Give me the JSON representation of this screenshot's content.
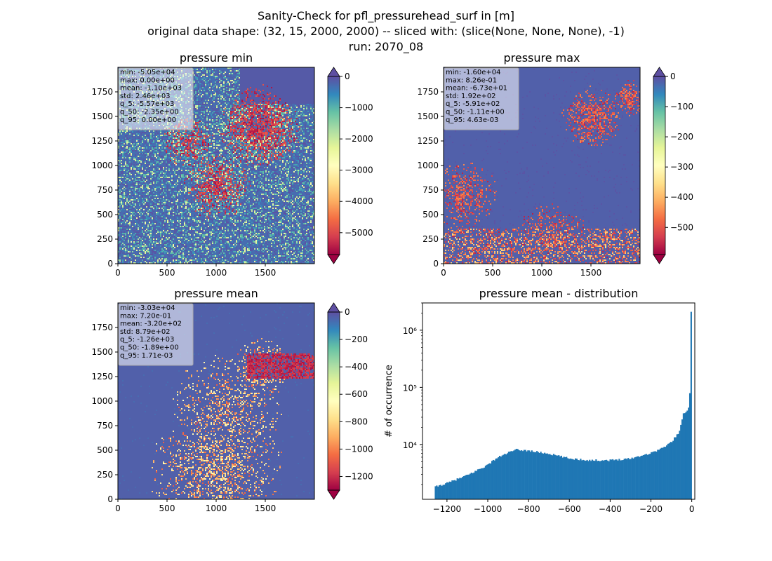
{
  "figure": {
    "title_lines": [
      "Sanity-Check for pfl_pressurehead_surf in [m]",
      "original data shape: (32, 15, 2000, 2000) -- sliced with: (slice(None, None, None), -1)",
      "run: 2070_08"
    ]
  },
  "chart_data": [
    {
      "type": "heatmap",
      "title": "pressure min",
      "xlim": [
        0,
        2000
      ],
      "ylim": [
        0,
        2000
      ],
      "xticks": [
        0,
        500,
        1000,
        1500
      ],
      "yticks": [
        0,
        250,
        500,
        750,
        1000,
        1250,
        1500,
        1750
      ],
      "colormap": "Spectral",
      "colorbar": {
        "range": [
          -5700,
          0
        ],
        "ticks": [
          0,
          -1000,
          -2000,
          -3000,
          -4000,
          -5000
        ],
        "extend": "both"
      },
      "stats_box": [
        "min: -5.05e+04",
        "max: 0.00e+00",
        "mean: -1.10e+03",
        "std: 2.46e+03",
        "q_5: -5.57e+03",
        "q_50: -2.35e+00",
        "q_95: 0.00e+00"
      ]
    },
    {
      "type": "heatmap",
      "title": "pressure max",
      "xlim": [
        0,
        2000
      ],
      "ylim": [
        0,
        2000
      ],
      "xticks": [
        0,
        500,
        1000,
        1500
      ],
      "yticks": [
        0,
        250,
        500,
        750,
        1000,
        1250,
        1500,
        1750
      ],
      "colormap": "Spectral",
      "colorbar": {
        "range": [
          -590,
          0
        ],
        "ticks": [
          0,
          -100,
          -200,
          -300,
          -400,
          -500
        ],
        "extend": "both"
      },
      "stats_box": [
        "min: -1.60e+04",
        "max: 8.26e-01",
        "mean: -6.73e+01",
        "std: 1.92e+02",
        "q_5: -5.91e+02",
        "q_50: -1.11e+00",
        "q_95: 4.63e-03"
      ]
    },
    {
      "type": "heatmap",
      "title": "pressure mean",
      "xlim": [
        0,
        2000
      ],
      "ylim": [
        0,
        2000
      ],
      "xticks": [
        0,
        500,
        1000,
        1500
      ],
      "yticks": [
        0,
        250,
        500,
        750,
        1000,
        1250,
        1500,
        1750
      ],
      "colormap": "Spectral",
      "colorbar": {
        "range": [
          -1300,
          0
        ],
        "ticks": [
          0,
          -200,
          -400,
          -600,
          -800,
          -1000,
          -1200
        ],
        "extend": "both"
      },
      "stats_box": [
        "min: -3.03e+04",
        "max: 7.20e-01",
        "mean: -3.20e+02",
        "std: 8.79e+02",
        "q_5: -1.26e+03",
        "q_50: -1.89e+00",
        "q_95: 1.71e-03"
      ]
    },
    {
      "type": "bar",
      "title": "pressure mean - distribution",
      "xlabel": "",
      "ylabel": "# of occurrence",
      "y_scale": "log",
      "xlim": [
        -1320,
        15
      ],
      "ylim": [
        1100,
        3000000
      ],
      "xticks": [
        -1200,
        -1000,
        -800,
        -600,
        -400,
        -200,
        0
      ],
      "xtick_labels": [
        "−1200",
        "−1000",
        "−800",
        "−600",
        "−400",
        "−200",
        "0"
      ],
      "yticks": [
        10000,
        100000,
        1000000
      ],
      "ytick_labels": [
        "10⁴",
        "10⁵",
        "10⁶"
      ],
      "bar_color": "#1f77b4",
      "bin_range": [
        -1260,
        0
      ],
      "profile": {
        "x": [
          -1260,
          -1200,
          -1100,
          -1000,
          -960,
          -900,
          -860,
          -800,
          -700,
          -600,
          -500,
          -400,
          -300,
          -200,
          -140,
          -100,
          -60,
          -40,
          -20,
          -10,
          -5,
          0
        ],
        "y": [
          1800,
          2100,
          2900,
          4400,
          5700,
          7200,
          8100,
          7800,
          6900,
          5700,
          5300,
          5300,
          5700,
          7100,
          8800,
          11000,
          17000,
          35000,
          40000,
          55000,
          2100000,
          2100000
        ]
      }
    }
  ]
}
